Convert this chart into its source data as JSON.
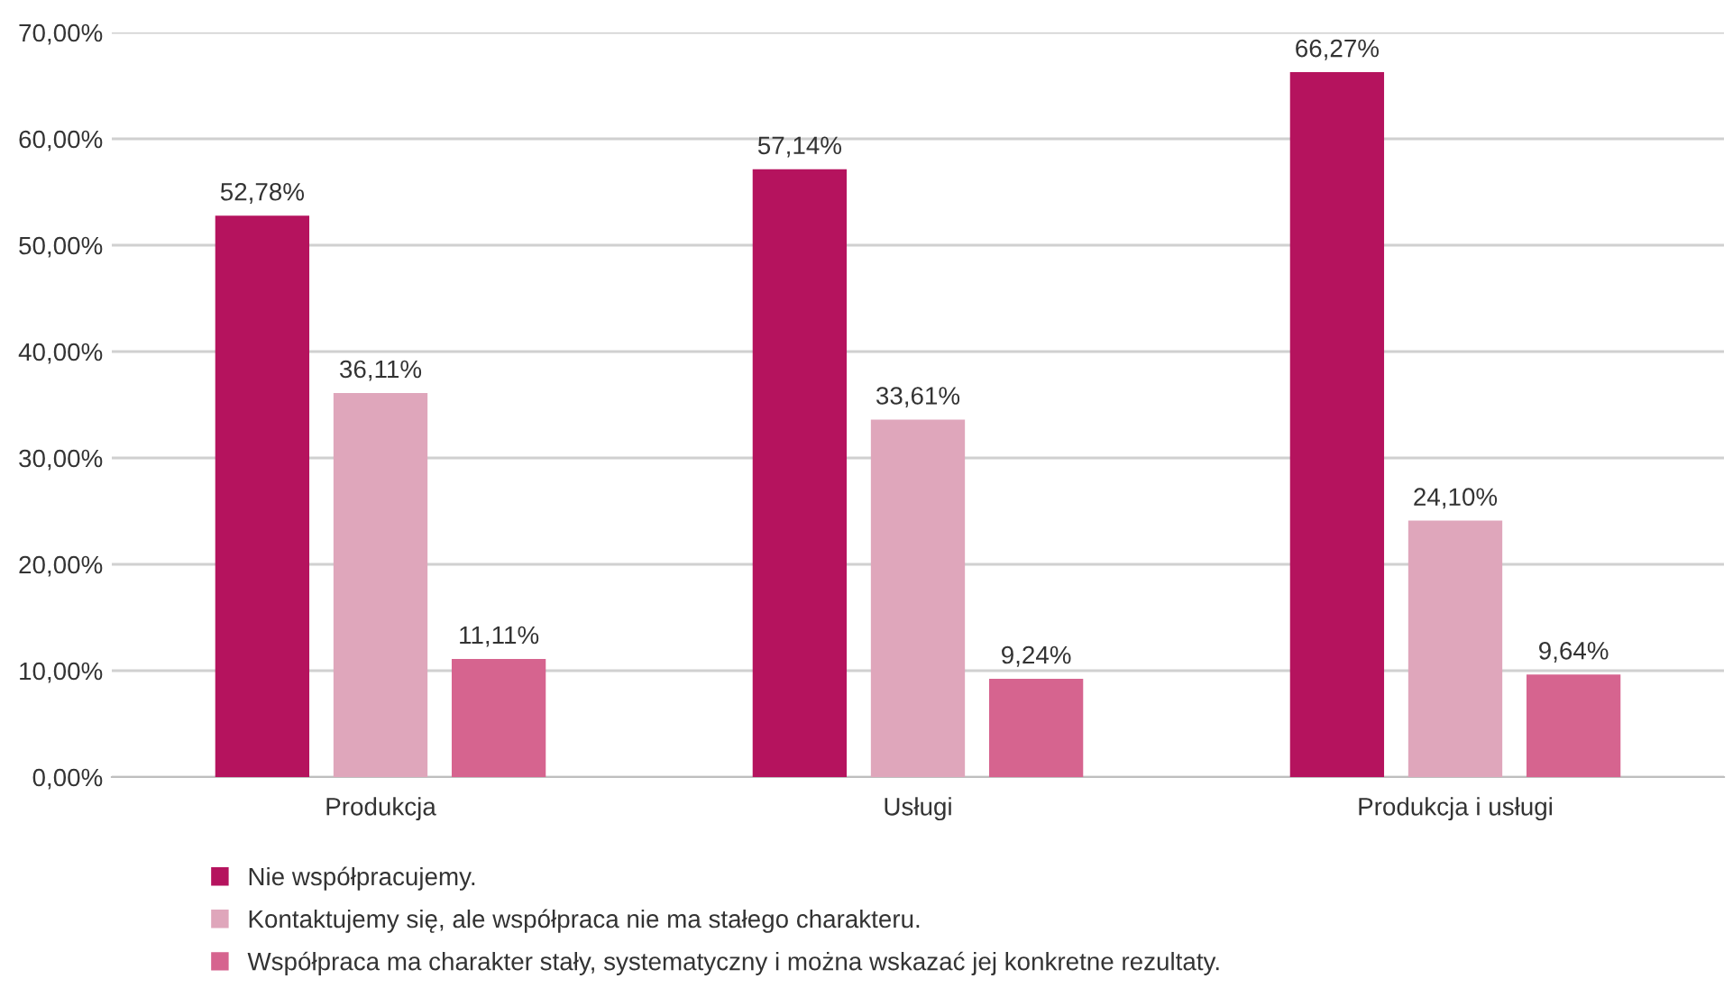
{
  "chart_data": {
    "type": "bar",
    "categories": [
      "Produkcja",
      "Usługi",
      "Produkcja i usługi"
    ],
    "series": [
      {
        "name": "Nie współpracujemy.",
        "color": "#b5135e",
        "values": [
          52.78,
          57.14,
          66.27
        ],
        "value_labels": [
          "52,78%",
          "57,14%",
          "66,27%"
        ]
      },
      {
        "name": "Kontaktujemy się, ale współpraca nie ma stałego charakteru.",
        "color": "#dfa6bb",
        "values": [
          36.11,
          33.61,
          24.1
        ],
        "value_labels": [
          "36,11%",
          "33,61%",
          "24,10%"
        ]
      },
      {
        "name": "Współpraca ma charakter stały, systematyczny i można wskazać jej konkretne rezultaty.",
        "color": "#d6648f",
        "values": [
          11.11,
          9.24,
          9.64
        ],
        "value_labels": [
          "11,11%",
          "9,24%",
          "9,64%"
        ]
      }
    ],
    "ylim": [
      0,
      70
    ],
    "yticks": [
      {
        "value": 0,
        "label": "0,00%"
      },
      {
        "value": 10,
        "label": "10,00%"
      },
      {
        "value": 20,
        "label": "20,00%"
      },
      {
        "value": 30,
        "label": "30,00%"
      },
      {
        "value": 40,
        "label": "40,00%"
      },
      {
        "value": 50,
        "label": "50,00%"
      },
      {
        "value": 60,
        "label": "60,00%"
      },
      {
        "value": 70,
        "label": "70,00%"
      }
    ],
    "grid": "y",
    "legend": "bottom"
  }
}
